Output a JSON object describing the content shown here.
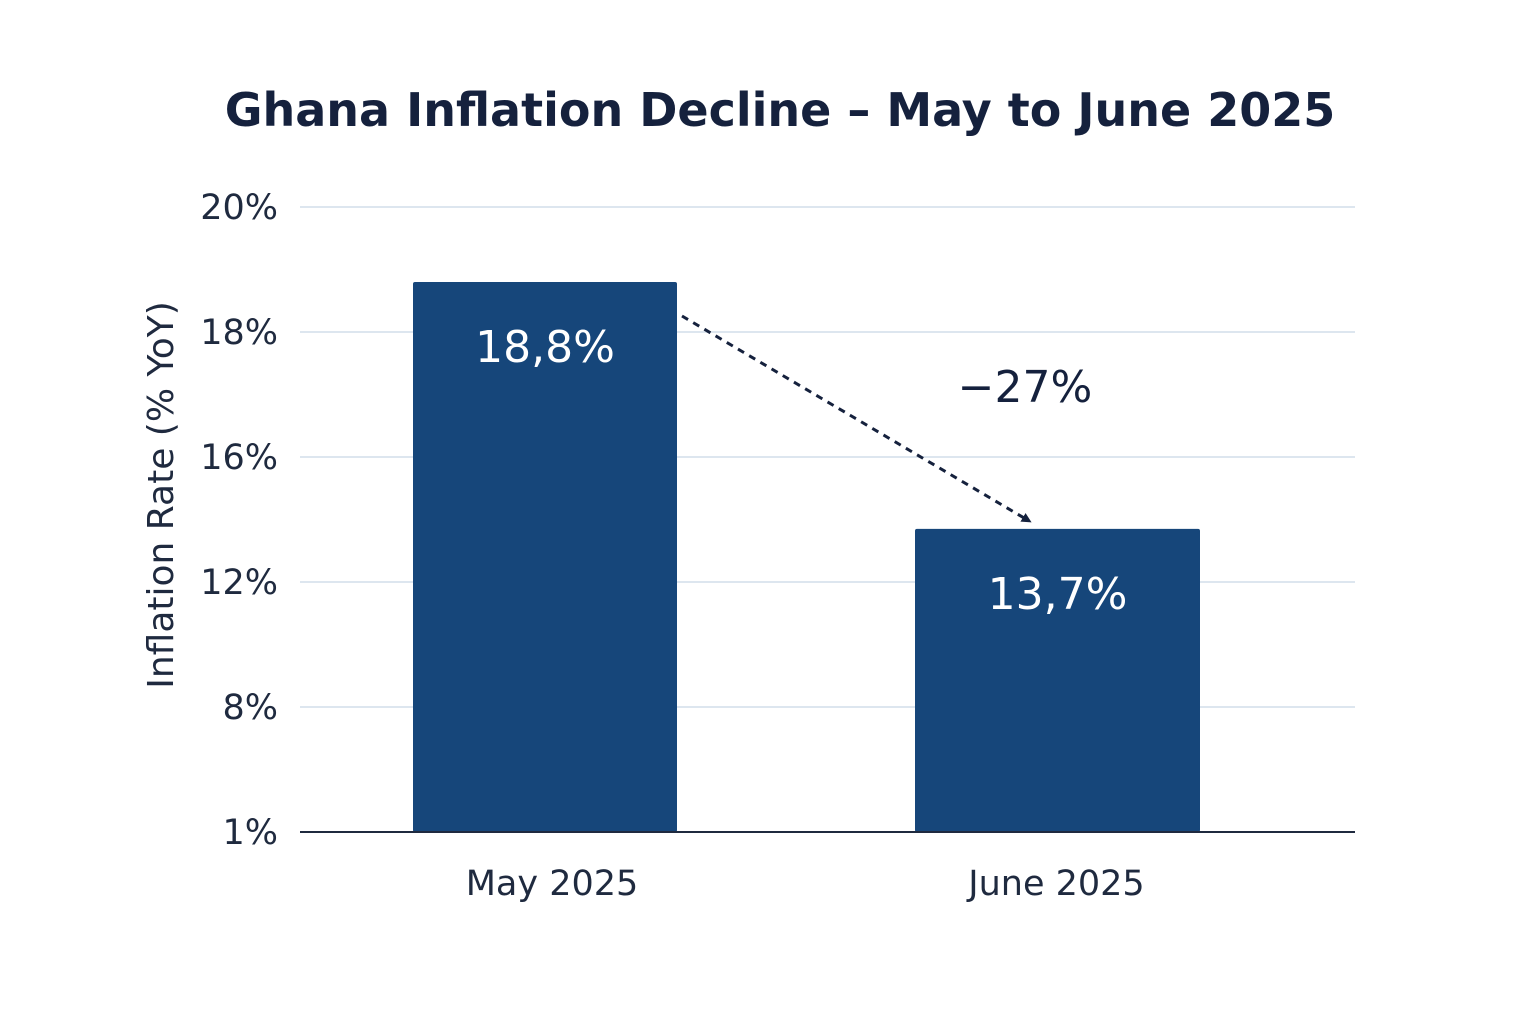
{
  "chart_data": {
    "type": "bar",
    "title": "Ghana Inflation Decline – May to June 2025",
    "ylabel": "Inflation Rate (% YoY)",
    "xlabel": "",
    "categories": [
      "May 2025",
      "June 2025"
    ],
    "values": [
      18.8,
      13.7
    ],
    "value_labels": [
      "18,8%",
      "13,7%"
    ],
    "y_ticks": [
      {
        "value": 20,
        "label": "20%"
      },
      {
        "value": 18,
        "label": "18%"
      },
      {
        "value": 16,
        "label": "16%"
      },
      {
        "value": 12,
        "label": "12%"
      },
      {
        "value": 8,
        "label": "8%"
      },
      {
        "value": 1,
        "label": "1%"
      }
    ],
    "grid": true,
    "annotation": {
      "text": "−27%",
      "from_category": "May 2025",
      "to_category": "June 2025",
      "style": "dashed-arrow"
    },
    "colors": {
      "bar": "#16467a",
      "grid": "#dde6ef",
      "axis": "#1f2a3f",
      "title": "#15213d",
      "arrow": "#15213d"
    }
  }
}
